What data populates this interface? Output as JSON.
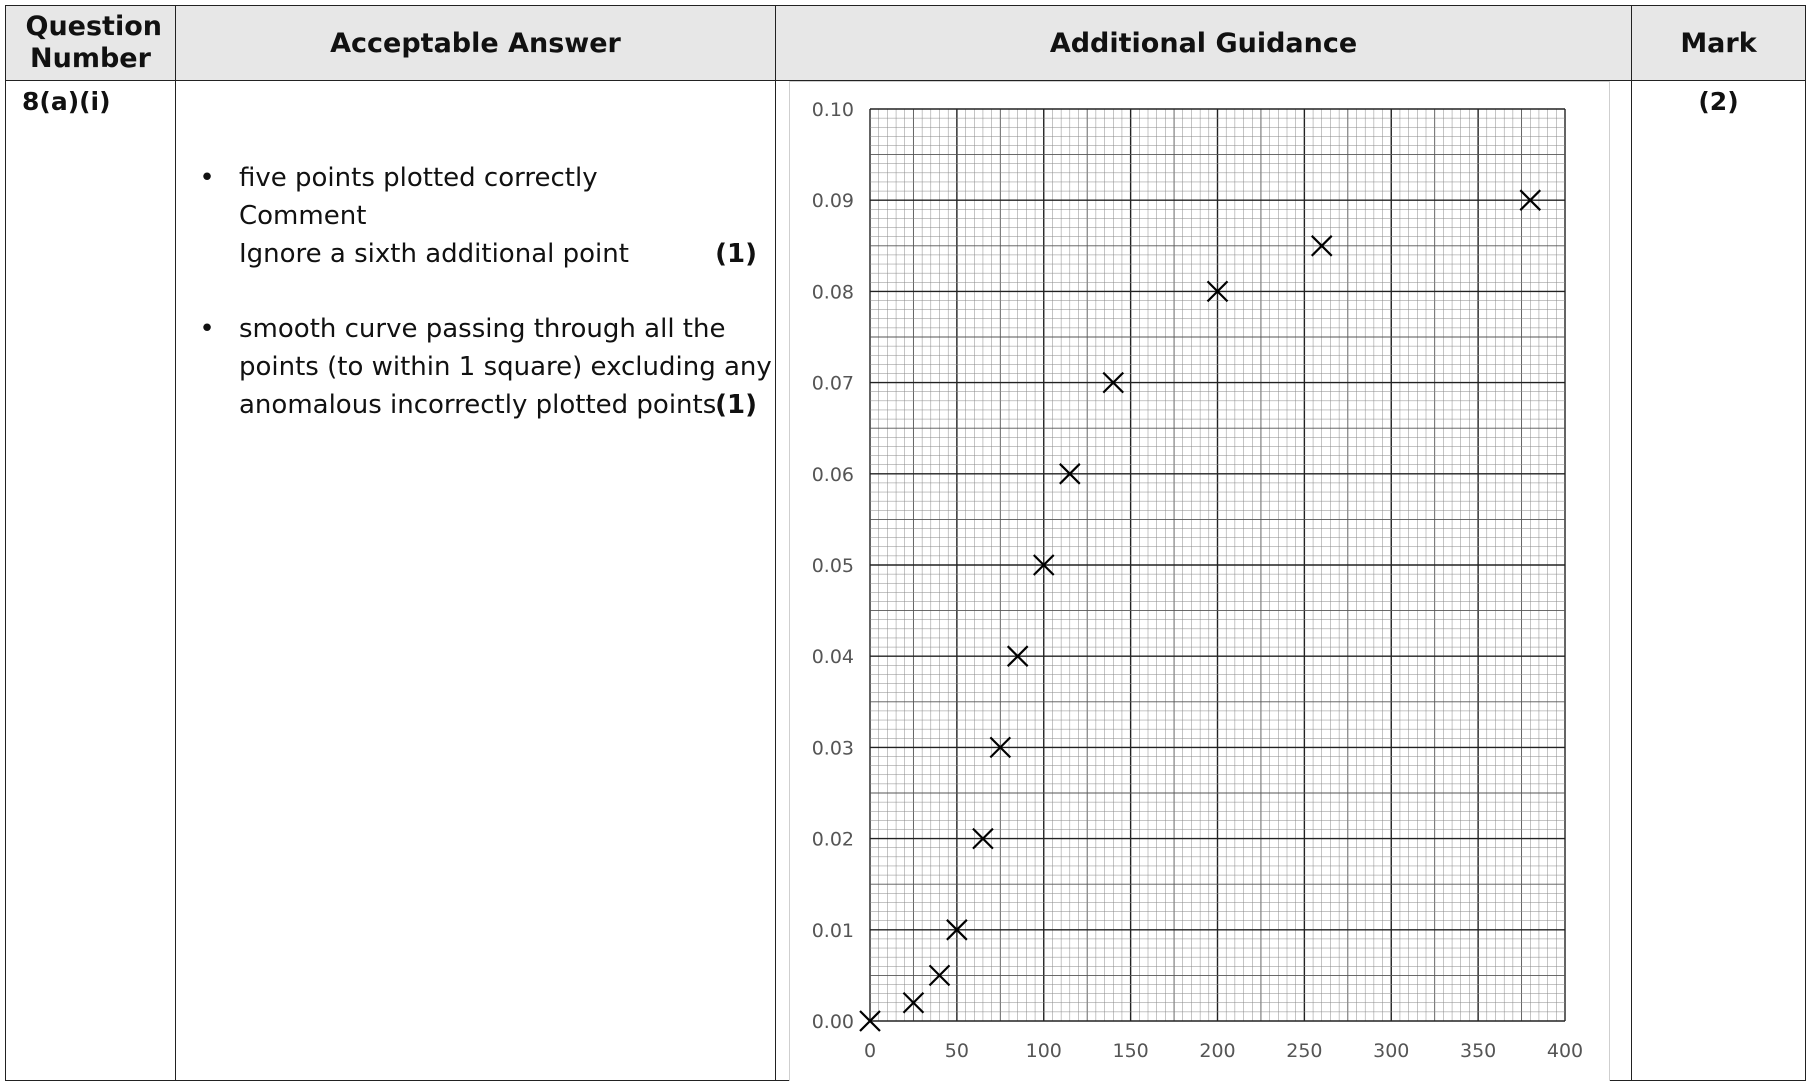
{
  "headers": {
    "question": "Question Number",
    "answer": "Acceptable Answer",
    "guidance": "Additional Guidance",
    "mark": "Mark"
  },
  "row": {
    "question_number": "8(a)(i)",
    "mark": "(2)",
    "bullets": [
      {
        "lines": [
          "five points plotted correctly",
          "Comment",
          "Ignore a sixth additional point"
        ],
        "mark": "(1)"
      },
      {
        "lines": [
          "smooth curve passing through all the",
          "points (to within 1 square) excluding any",
          "anomalous incorrectly plotted points"
        ],
        "mark": "(1)"
      }
    ]
  },
  "chart_data": {
    "type": "scatter",
    "marker": "x",
    "xlim": [
      0,
      400
    ],
    "ylim": [
      0,
      0.1
    ],
    "x_ticks": [
      "0",
      "50",
      "100",
      "150",
      "200",
      "250",
      "300",
      "350",
      "400"
    ],
    "y_ticks": [
      "0.00",
      "0.01",
      "0.02",
      "0.03",
      "0.04",
      "0.05",
      "0.06",
      "0.07",
      "0.08",
      "0.09",
      "0.10"
    ],
    "grid": true,
    "points": [
      {
        "x": 0,
        "y": 0
      },
      {
        "x": 25,
        "y": 0.002
      },
      {
        "x": 40,
        "y": 0.005
      },
      {
        "x": 50,
        "y": 0.01
      },
      {
        "x": 65,
        "y": 0.02
      },
      {
        "x": 75,
        "y": 0.03
      },
      {
        "x": 85,
        "y": 0.04
      },
      {
        "x": 100,
        "y": 0.05
      },
      {
        "x": 115,
        "y": 0.06
      },
      {
        "x": 140,
        "y": 0.07
      },
      {
        "x": 200,
        "y": 0.08
      },
      {
        "x": 260,
        "y": 0.085
      },
      {
        "x": 380,
        "y": 0.09
      }
    ]
  }
}
